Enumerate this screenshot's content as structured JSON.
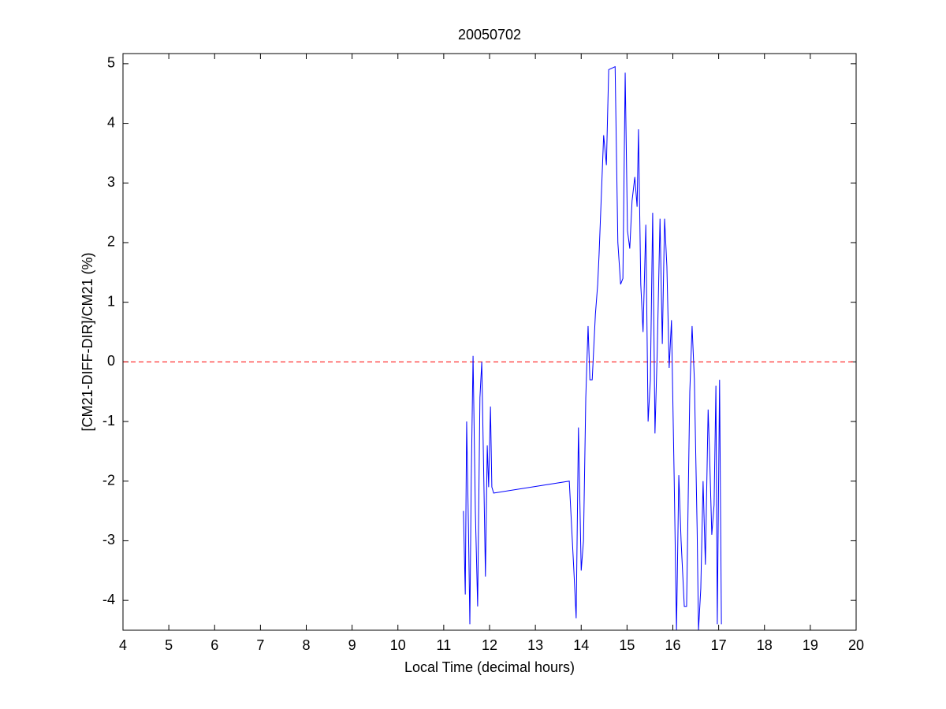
{
  "chart_data": {
    "type": "line",
    "title": "20050702",
    "x_label": "Local Time (decimal hours)",
    "y_label": "[CM21-DIFF-DIR]/CM21 (%)",
    "x": [
      11.43,
      11.47,
      11.5,
      11.54,
      11.57,
      11.6,
      11.64,
      11.69,
      11.74,
      11.79,
      11.83,
      11.88,
      11.91,
      11.95,
      11.98,
      12.02,
      12.05,
      12.09,
      13.74,
      13.84,
      13.89,
      13.94,
      14.0,
      14.05,
      14.1,
      14.15,
      14.19,
      14.24,
      14.31,
      14.36,
      14.39,
      14.44,
      14.49,
      14.55,
      14.6,
      14.74,
      14.8,
      14.86,
      14.91,
      14.96,
      15.01,
      15.06,
      15.11,
      15.17,
      15.22,
      15.25,
      15.3,
      15.35,
      15.41,
      15.46,
      15.51,
      15.56,
      15.61,
      15.66,
      15.72,
      15.77,
      15.82,
      15.87,
      15.92,
      15.97,
      16.03,
      16.08,
      16.13,
      16.18,
      16.25,
      16.3,
      16.37,
      16.42,
      16.47,
      16.53,
      16.56,
      16.61,
      16.66,
      16.71,
      16.77,
      16.8,
      16.85,
      16.9,
      16.94,
      16.97,
      17.02,
      17.06
    ],
    "series": [
      {
        "color": "#0000ff",
        "values": [
          -2.5,
          -3.9,
          -1.0,
          -2.8,
          -4.4,
          -2.0,
          0.1,
          -2.5,
          -4.1,
          -0.6,
          0.0,
          -2.2,
          -3.6,
          -1.4,
          -2.1,
          -0.75,
          -2.1,
          -2.2,
          -2.0,
          -3.5,
          -4.3,
          -1.1,
          -3.5,
          -3.0,
          -0.6,
          0.6,
          -0.3,
          -0.3,
          0.8,
          1.3,
          1.8,
          2.8,
          3.8,
          3.3,
          4.9,
          4.95,
          2.0,
          1.3,
          1.4,
          4.85,
          2.2,
          1.9,
          2.7,
          3.1,
          2.6,
          3.9,
          1.3,
          0.5,
          2.3,
          -1.0,
          -0.3,
          2.5,
          -1.2,
          0.2,
          2.4,
          0.3,
          2.4,
          1.6,
          -0.1,
          0.7,
          -2.0,
          -4.5,
          -1.9,
          -3.0,
          -4.1,
          -4.1,
          -0.5,
          0.6,
          -0.3,
          -2.8,
          -4.5,
          -3.8,
          -2.0,
          -3.4,
          -0.8,
          -1.5,
          -2.9,
          -2.4,
          -0.4,
          -4.4,
          -0.3,
          -4.4
        ]
      }
    ],
    "reference_line": {
      "y": 0,
      "color": "#ff0000",
      "dashed": true
    },
    "xlim": [
      4,
      20
    ],
    "xticks": [
      4,
      5,
      6,
      7,
      8,
      9,
      10,
      11,
      12,
      13,
      14,
      15,
      16,
      17,
      18,
      19,
      20
    ],
    "ylim": [
      -4.5,
      5.17
    ],
    "yticks": [
      -4,
      -3,
      -2,
      -1,
      0,
      1,
      2,
      3,
      4,
      5
    ],
    "grid": false
  }
}
